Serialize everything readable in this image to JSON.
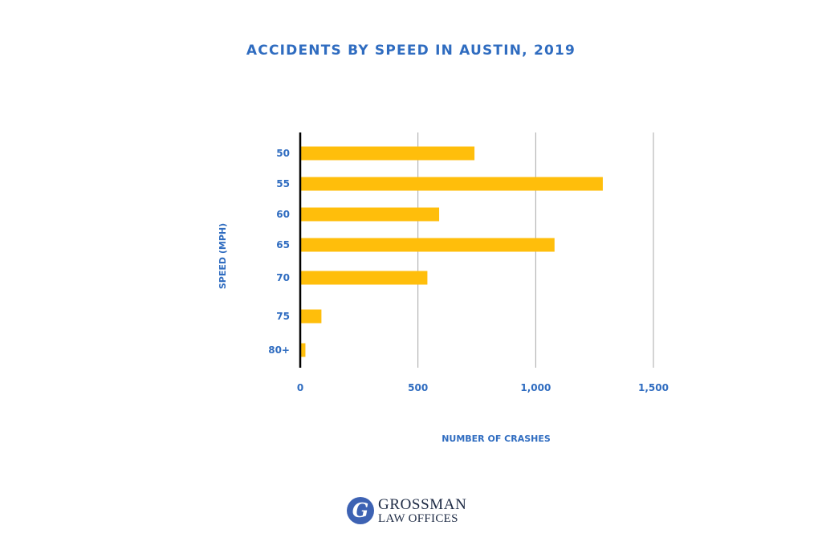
{
  "chart_data": {
    "type": "bar",
    "orientation": "horizontal",
    "title": "ACCIDENTS BY SPEED IN AUSTIN, 2019",
    "xlabel": "NUMBER OF CRASHES",
    "ylabel": "SPEED (MPH)",
    "categories": [
      "50",
      "55",
      "60",
      "65",
      "70",
      "75",
      "80+"
    ],
    "values": [
      740,
      1285,
      590,
      1080,
      540,
      90,
      22
    ],
    "xlim": [
      0,
      1500
    ],
    "xticks": [
      0,
      500,
      1000,
      1500
    ],
    "xtick_labels": [
      "0",
      "500",
      "1,000",
      "1,500"
    ],
    "grid": "vertical",
    "legend": "none",
    "colors": {
      "bar": "#ffbe0b",
      "text": "#2f6cc0",
      "grid": "#a8a8a8",
      "axis": "#000000"
    }
  },
  "logo": {
    "mark": "G",
    "line1": "GROSSMAN",
    "line2": "LAW OFFICES",
    "color": "#3d62b3"
  }
}
